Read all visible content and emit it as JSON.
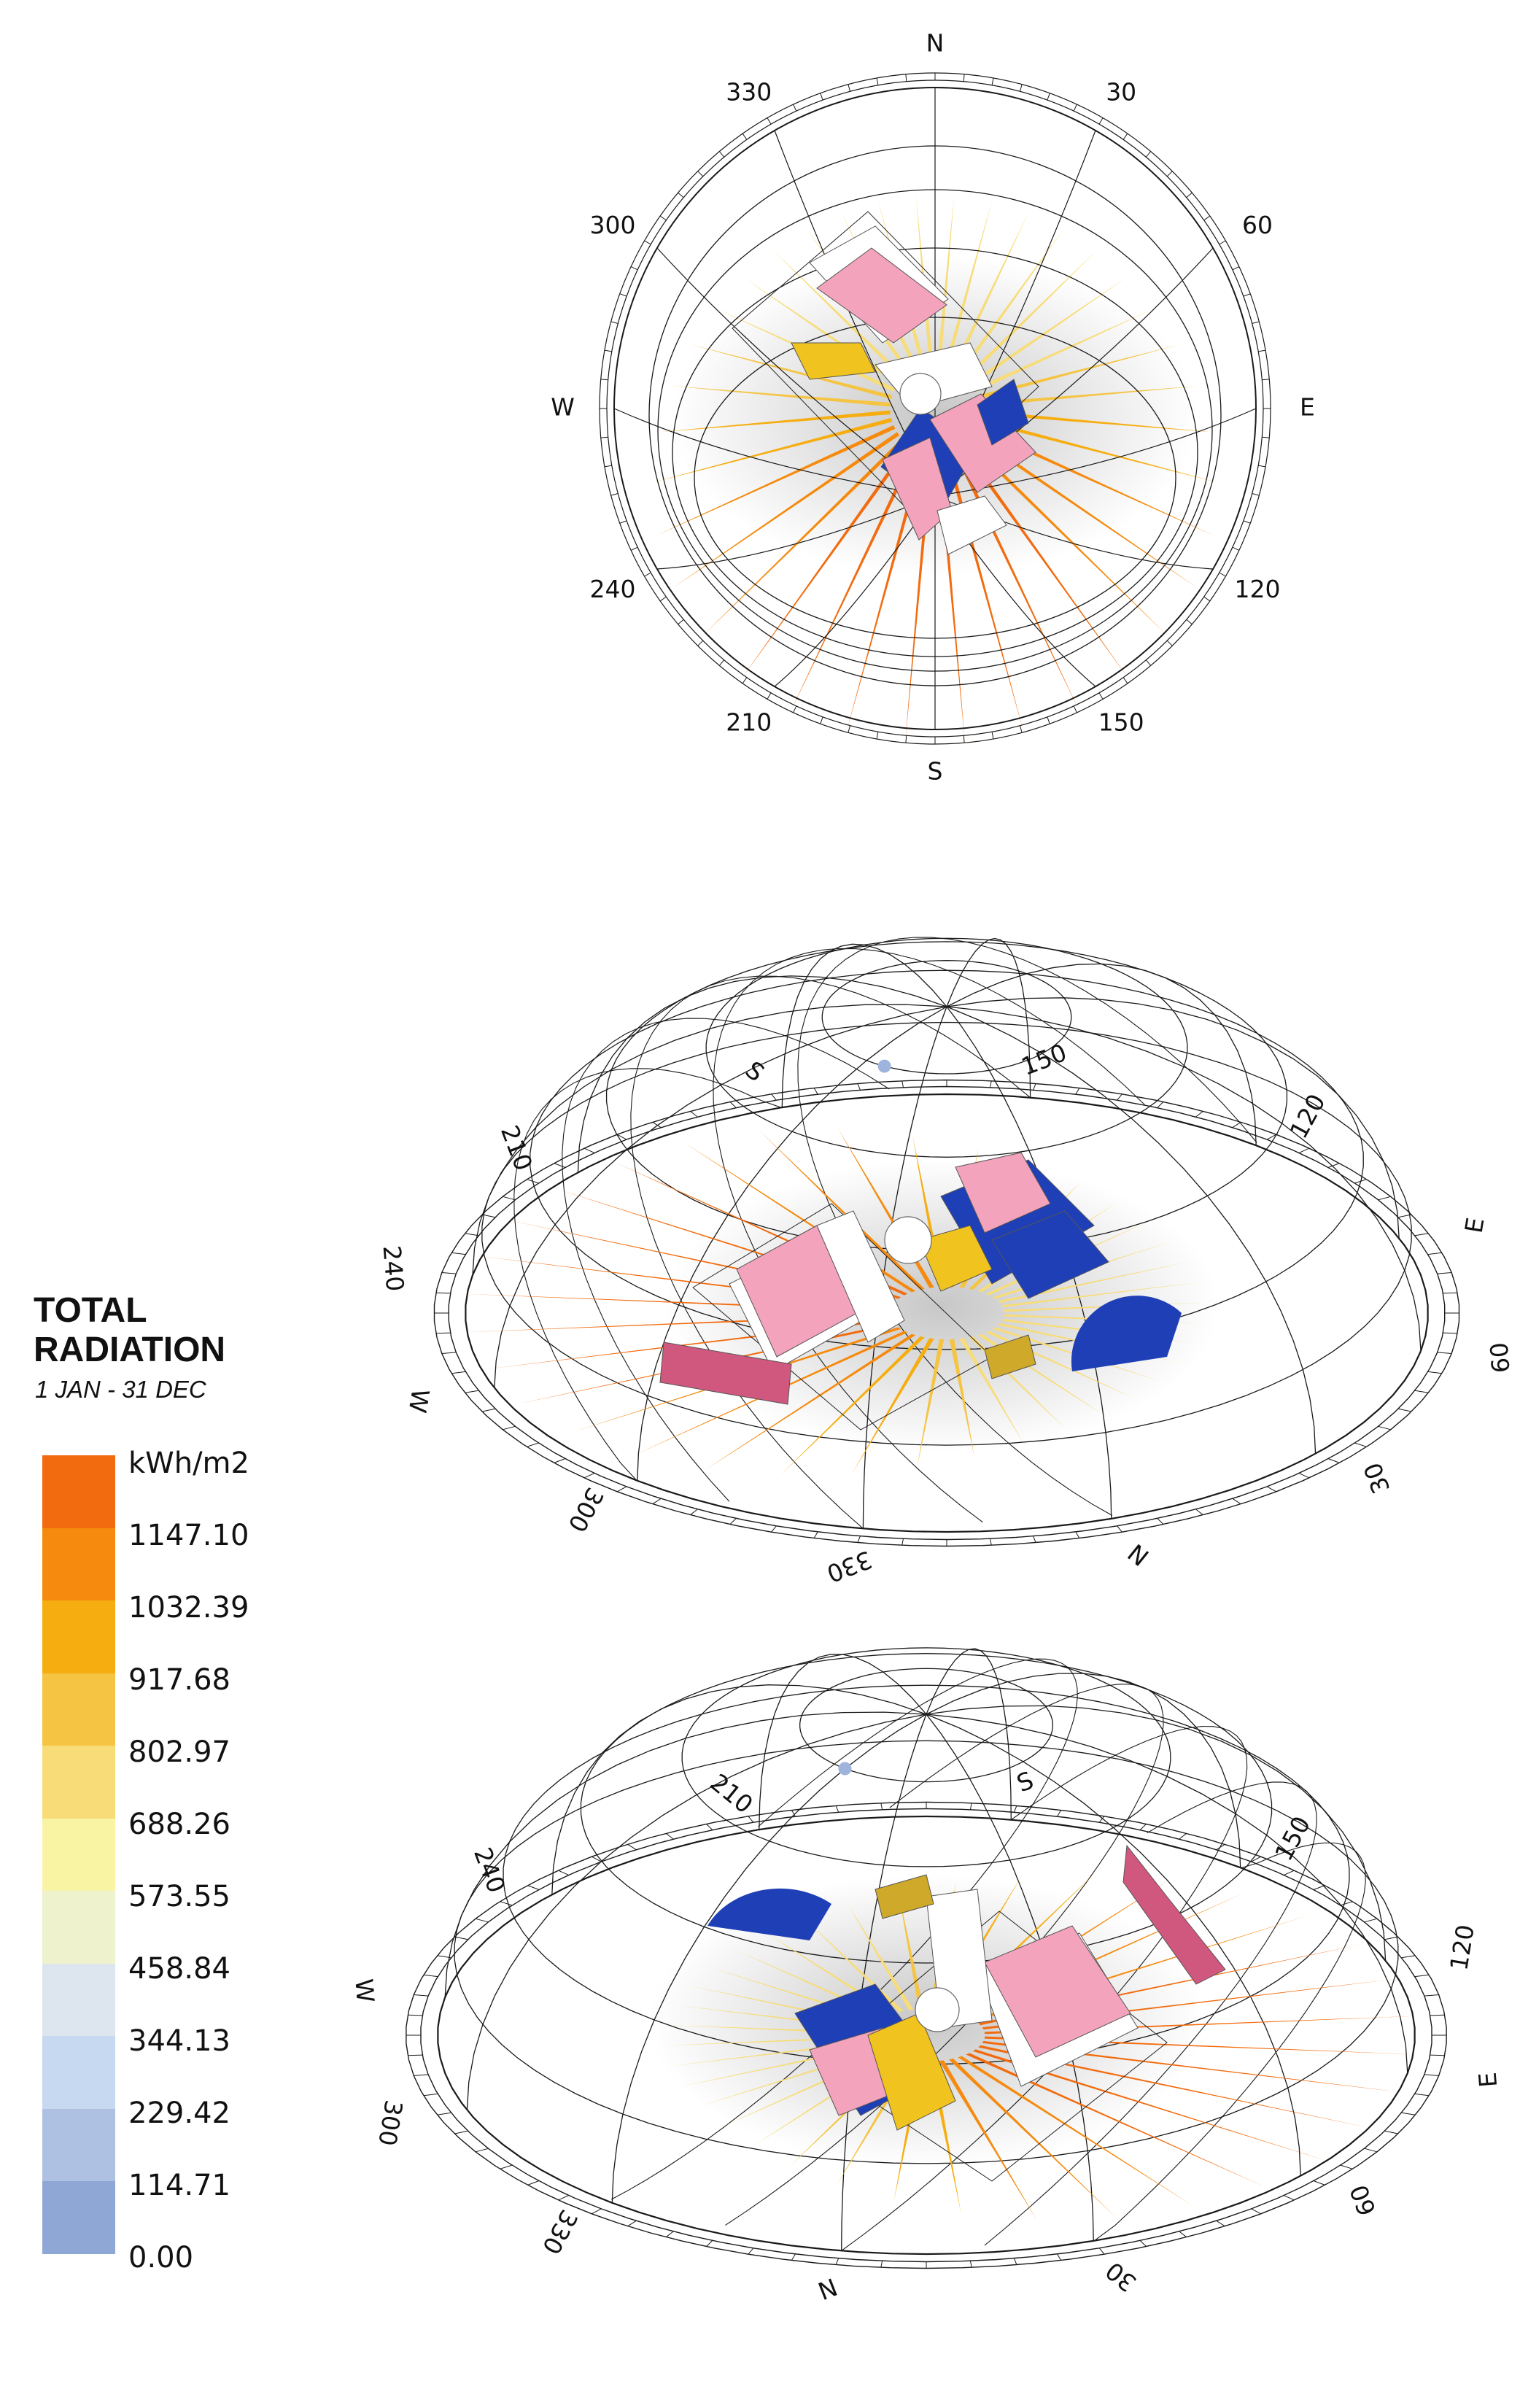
{
  "legend": {
    "title_line1": "TOTAL",
    "title_line2": "RADIATION",
    "period": "1 JAN - 31 DEC",
    "unit": "kWh/m2",
    "values": [
      "1147.10",
      "1032.39",
      "917.68",
      "802.97",
      "688.26",
      "573.55",
      "458.84",
      "344.13",
      "229.42",
      "114.71",
      "0.00"
    ],
    "colors": [
      "#f26b0e",
      "#f58a0e",
      "#f6ad10",
      "#f5c443",
      "#f7dc78",
      "#f9f4a4",
      "#eef2cd",
      "#dde6ee",
      "#c7d8f1",
      "#aec1e3",
      "#8fa7d4"
    ]
  },
  "spokes": {
    "peak_deg": 180,
    "radiation_by_angle": [
      {
        "deg": 0,
        "value": 690
      },
      {
        "deg": 30,
        "value": 710
      },
      {
        "deg": 60,
        "value": 760
      },
      {
        "deg": 90,
        "value": 900
      },
      {
        "deg": 120,
        "value": 1080
      },
      {
        "deg": 150,
        "value": 1180
      },
      {
        "deg": 180,
        "value": 1190
      },
      {
        "deg": 210,
        "value": 1180
      },
      {
        "deg": 240,
        "value": 1080
      },
      {
        "deg": 270,
        "value": 900
      },
      {
        "deg": 300,
        "value": 760
      },
      {
        "deg": 330,
        "value": 710
      }
    ]
  },
  "views": [
    {
      "name": "plan-view",
      "labels": [
        "N",
        "30",
        "60",
        "E",
        "120",
        "150",
        "S",
        "210",
        "240",
        "W",
        "300",
        "330"
      ]
    },
    {
      "name": "axonometric-view-1",
      "labels": [
        "60",
        "30",
        "N",
        "330",
        "300",
        "W",
        "240",
        "210",
        "S",
        "150",
        "120",
        "E"
      ]
    },
    {
      "name": "axonometric-view-2",
      "labels": [
        "W",
        "240",
        "210",
        "S",
        "150",
        "120",
        "E",
        "60",
        "30",
        "N",
        "330",
        "300"
      ]
    }
  ],
  "building": {
    "colors": {
      "pink": "#f4a3bd",
      "blue": "#1f3fb6",
      "yellow": "#f1c31e",
      "white": "#ffffff",
      "magenta": "#d0587e",
      "olive": "#cfa92a",
      "sun": "#9fb4dc"
    }
  }
}
